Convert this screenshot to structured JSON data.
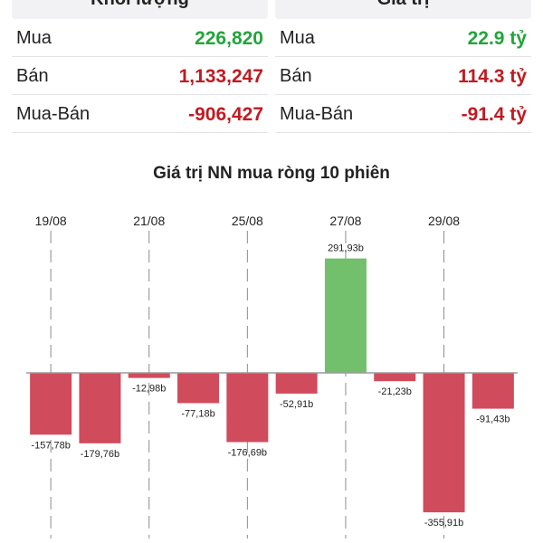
{
  "volume_card": {
    "header": "Khối lượng",
    "rows": [
      {
        "label": "Mua",
        "value": "226,820",
        "kind": "buy"
      },
      {
        "label": "Bán",
        "value": "1,133,247",
        "kind": "sell"
      },
      {
        "label": "Mua-Bán",
        "value": "-906,427",
        "kind": "sell"
      }
    ]
  },
  "value_card": {
    "header": "Giá trị",
    "rows": [
      {
        "label": "Mua",
        "value": "22.9 tỷ",
        "kind": "buy"
      },
      {
        "label": "Bán",
        "value": "114.3 tỷ",
        "kind": "sell"
      },
      {
        "label": "Mua-Bán",
        "value": "-91.4 tỷ",
        "kind": "sell"
      }
    ]
  },
  "colors": {
    "positive_bar": "#72c06b",
    "negative_bar": "#d04b5c",
    "buy_text": "#22a53a",
    "sell_text": "#c01a22"
  },
  "chart_data": {
    "type": "bar",
    "title": "Giá trị NN mua ròng 10 phiên",
    "x_tick_labels": [
      "19/08",
      "21/08",
      "25/08",
      "27/08",
      "29/08"
    ],
    "x_tick_positions": [
      0,
      2,
      4,
      6,
      8
    ],
    "values": [
      -157.78,
      -179.76,
      -12.98,
      -77.18,
      -176.69,
      -52.91,
      291.93,
      -21.23,
      -355.91,
      -91.43
    ],
    "data_labels": [
      "-157,78b",
      "-179,76b",
      "-12,98b",
      "-77,18b",
      "-176,69b",
      "-52,91b",
      "291,93b",
      "-21,23b",
      "-355,91b",
      "-91,43b"
    ],
    "xlabel": "",
    "ylabel": "",
    "ylim": [
      -400,
      320
    ],
    "grid": true,
    "legend": false
  }
}
